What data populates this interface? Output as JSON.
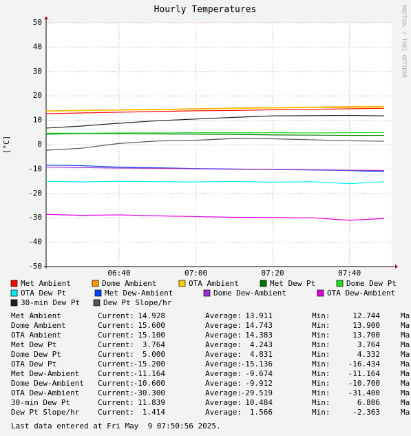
{
  "chart_data": {
    "type": "line",
    "title": "Hourly Temperatures",
    "y_label": "[°C]",
    "side_text": "RRDTOOL / TOBI OETIKER",
    "x": [
      381,
      390,
      400,
      410,
      420,
      430,
      440,
      450,
      460,
      469
    ],
    "xlim": [
      381,
      471
    ],
    "xticks": [
      {
        "value": 400,
        "label": "06:40"
      },
      {
        "value": 420,
        "label": "07:00"
      },
      {
        "value": 440,
        "label": "07:20"
      },
      {
        "value": 460,
        "label": "07:40"
      }
    ],
    "ylim": [
      -50,
      50
    ],
    "yticks": [
      -50,
      -40,
      -30,
      -20,
      -10,
      0,
      10,
      20,
      30,
      40,
      50
    ],
    "grid": true,
    "series": [
      {
        "name": "Met Ambient",
        "color": "#ff0000",
        "values": [
          12.7,
          13.0,
          13.3,
          13.6,
          13.9,
          14.0,
          14.3,
          14.5,
          14.7,
          14.9
        ]
      },
      {
        "name": "Dome Ambient",
        "color": "#ff9900",
        "values": [
          13.9,
          14.1,
          14.3,
          14.5,
          14.7,
          15.0,
          15.2,
          15.4,
          15.6,
          15.6
        ]
      },
      {
        "name": "OTA Ambient",
        "color": "#ffcc00",
        "values": [
          13.7,
          13.9,
          14.1,
          14.3,
          14.5,
          14.8,
          15.0,
          15.2,
          15.1,
          15.1
        ]
      },
      {
        "name": "Met Dew Pt",
        "color": "#007700",
        "values": [
          4.3,
          4.5,
          4.5,
          4.4,
          4.3,
          4.2,
          4.0,
          3.9,
          3.8,
          3.8
        ]
      },
      {
        "name": "Dome Dew Pt",
        "color": "#22dd22",
        "values": [
          4.7,
          4.7,
          4.8,
          4.8,
          4.9,
          4.9,
          4.9,
          4.8,
          4.9,
          5.0
        ]
      },
      {
        "name": "OTA Dew Pt",
        "color": "#00eeee",
        "values": [
          -15.0,
          -15.3,
          -15.0,
          -15.2,
          -15.3,
          -15.1,
          -15.4,
          -15.2,
          -16.0,
          -15.2
        ]
      },
      {
        "name": "Met Dew-Ambient",
        "color": "#0040ff",
        "values": [
          -8.4,
          -8.6,
          -9.2,
          -9.5,
          -9.8,
          -10.0,
          -10.2,
          -10.4,
          -10.6,
          -11.2
        ]
      },
      {
        "name": "Dome Dew-Ambient",
        "color": "#9933cc",
        "values": [
          -9.2,
          -9.4,
          -9.6,
          -9.7,
          -9.9,
          -10.1,
          -10.2,
          -10.3,
          -10.5,
          -10.6
        ]
      },
      {
        "name": "OTA Dew-Ambient",
        "color": "#dd00dd",
        "values": [
          -28.6,
          -29.0,
          -28.8,
          -29.2,
          -29.5,
          -29.8,
          -29.9,
          -30.0,
          -31.0,
          -30.3
        ]
      },
      {
        "name": "30-min Dew Pt",
        "color": "#202020",
        "values": [
          6.8,
          7.6,
          8.8,
          9.8,
          10.5,
          11.2,
          11.8,
          11.9,
          12.0,
          11.8
        ]
      },
      {
        "name": "Dew Pt Slope/hr",
        "color": "#555555",
        "values": [
          -2.3,
          -1.5,
          0.5,
          1.5,
          1.8,
          2.5,
          2.4,
          2.0,
          1.6,
          1.4
        ]
      }
    ],
    "stats_labels": [
      "Current:",
      "Average:",
      "Min:",
      "Ma"
    ],
    "stats": [
      [
        "14.928",
        "13.911",
        "12.744"
      ],
      [
        "15.600",
        "14.743",
        "13.900"
      ],
      [
        "15.100",
        "14.383",
        "13.700"
      ],
      [
        "3.764",
        "4.243",
        "3.764"
      ],
      [
        "5.000",
        "4.831",
        "4.332"
      ],
      [
        "-15.200",
        "-15.136",
        "-16.434"
      ],
      [
        "-11.164",
        "-9.674",
        "-11.164"
      ],
      [
        "-10.600",
        "-9.912",
        "-10.700"
      ],
      [
        "-30.300",
        "-29.519",
        "-31.400"
      ],
      [
        "11.839",
        "10.484",
        "6.806"
      ],
      [
        "1.414",
        "1.566",
        "-2.363"
      ]
    ],
    "footer": "Last data entered at Fri May  9 07:50:56 2025."
  }
}
